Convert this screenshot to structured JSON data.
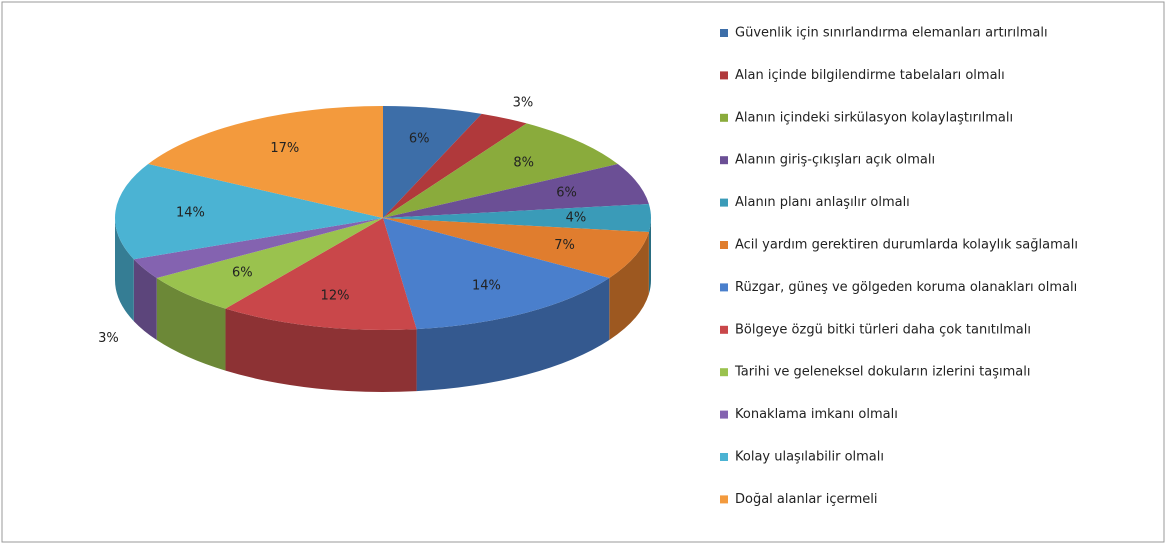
{
  "chart_data": {
    "type": "pie3d",
    "categories": [
      "Güvenlik için sınırlandırma elemanları artırılmalı",
      "Alan içinde bilgilendirme tabelaları olmalı",
      "Alanın içindeki sirkülasyon kolaylaştırılmalı",
      "Alanın giriş-çıkışları açık olmalı",
      "Alanın planı anlaşılır olmalı",
      "Acil yardım gerektiren durumlarda kolaylık sağlamalı",
      "Rüzgar, güneş ve gölgeden koruma olanakları olmalı",
      "Bölgeye özgü bitki türleri daha çok tanıtılmalı",
      "Tarihi ve geleneksel dokuların izlerini taşımalı",
      "Konaklama imkanı olmalı",
      "Kolay ulaşılabilir olmalı",
      "Doğal alanlar içermeli"
    ],
    "values": [
      6,
      3,
      8,
      6,
      4,
      7,
      14,
      12,
      6,
      3,
      14,
      17
    ],
    "value_labels": [
      "6%",
      "3%",
      "8%",
      "6%",
      "4%",
      "7%",
      "14%",
      "12%",
      "6%",
      "3%",
      "14%",
      "17%"
    ],
    "colors": [
      "#3d6ea8",
      "#b0393b",
      "#8aab3c",
      "#6b4f95",
      "#3a9bb8",
      "#e07d2e",
      "#4a7fcc",
      "#c9474a",
      "#9ac24e",
      "#8463b0",
      "#4bb3d3",
      "#f39a3d"
    ],
    "legend": "right"
  }
}
